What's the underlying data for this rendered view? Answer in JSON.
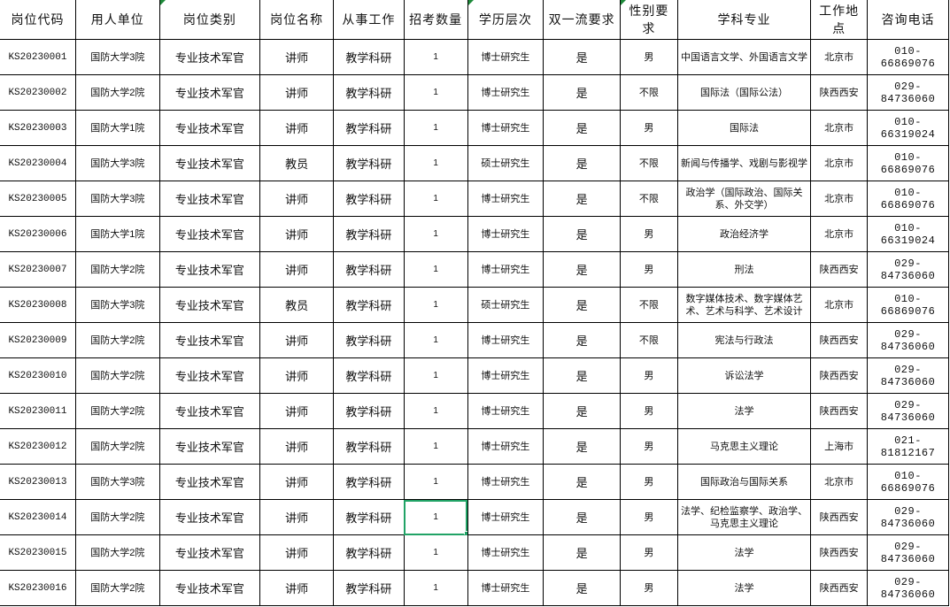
{
  "accent": "#21a366",
  "headers": [
    "岗位代码",
    "用人单位",
    "岗位类别",
    "岗位名称",
    "从事工作",
    "招考数量",
    "学历层次",
    "双一流要求",
    "性别要求",
    "学科专业",
    "工作地点",
    "咨询电话"
  ],
  "selected_cell": {
    "row": 14,
    "column": "招考数量"
  },
  "rows": [
    [
      "KS20230001",
      "国防大学3院",
      "专业技术军官",
      "讲师",
      "教学科研",
      "1",
      "博士研究生",
      "是",
      "男",
      "中国语言文学、外国语言文学",
      "北京市",
      "010-66869076"
    ],
    [
      "KS20230002",
      "国防大学2院",
      "专业技术军官",
      "讲师",
      "教学科研",
      "1",
      "博士研究生",
      "是",
      "不限",
      "国际法（国际公法）",
      "陕西西安",
      "029-84736060"
    ],
    [
      "KS20230003",
      "国防大学1院",
      "专业技术军官",
      "讲师",
      "教学科研",
      "1",
      "博士研究生",
      "是",
      "男",
      "国际法",
      "北京市",
      "010-66319024"
    ],
    [
      "KS20230004",
      "国防大学3院",
      "专业技术军官",
      "教员",
      "教学科研",
      "1",
      "硕士研究生",
      "是",
      "不限",
      "新闻与传播学、戏剧与影视学",
      "北京市",
      "010-66869076"
    ],
    [
      "KS20230005",
      "国防大学3院",
      "专业技术军官",
      "讲师",
      "教学科研",
      "1",
      "博士研究生",
      "是",
      "不限",
      "政治学（国际政治、国际关系、外交学）",
      "北京市",
      "010-66869076"
    ],
    [
      "KS20230006",
      "国防大学1院",
      "专业技术军官",
      "讲师",
      "教学科研",
      "1",
      "博士研究生",
      "是",
      "男",
      "政治经济学",
      "北京市",
      "010-66319024"
    ],
    [
      "KS20230007",
      "国防大学2院",
      "专业技术军官",
      "讲师",
      "教学科研",
      "1",
      "博士研究生",
      "是",
      "男",
      "刑法",
      "陕西西安",
      "029-84736060"
    ],
    [
      "KS20230008",
      "国防大学3院",
      "专业技术军官",
      "教员",
      "教学科研",
      "1",
      "硕士研究生",
      "是",
      "不限",
      "数字媒体技术、数字媒体艺术、艺术与科学、艺术设计",
      "北京市",
      "010-66869076"
    ],
    [
      "KS20230009",
      "国防大学2院",
      "专业技术军官",
      "讲师",
      "教学科研",
      "1",
      "博士研究生",
      "是",
      "不限",
      "宪法与行政法",
      "陕西西安",
      "029-84736060"
    ],
    [
      "KS20230010",
      "国防大学2院",
      "专业技术军官",
      "讲师",
      "教学科研",
      "1",
      "博士研究生",
      "是",
      "男",
      "诉讼法学",
      "陕西西安",
      "029-84736060"
    ],
    [
      "KS20230011",
      "国防大学2院",
      "专业技术军官",
      "讲师",
      "教学科研",
      "1",
      "博士研究生",
      "是",
      "男",
      "法学",
      "陕西西安",
      "029-84736060"
    ],
    [
      "KS20230012",
      "国防大学2院",
      "专业技术军官",
      "讲师",
      "教学科研",
      "1",
      "博士研究生",
      "是",
      "男",
      "马克思主义理论",
      "上海市",
      "021-81812167"
    ],
    [
      "KS20230013",
      "国防大学3院",
      "专业技术军官",
      "讲师",
      "教学科研",
      "1",
      "博士研究生",
      "是",
      "男",
      "国际政治与国际关系",
      "北京市",
      "010-66869076"
    ],
    [
      "KS20230014",
      "国防大学2院",
      "专业技术军官",
      "讲师",
      "教学科研",
      "1",
      "博士研究生",
      "是",
      "男",
      "法学、纪检监察学、政治学、马克思主义理论",
      "陕西西安",
      "029-84736060"
    ],
    [
      "KS20230015",
      "国防大学2院",
      "专业技术军官",
      "讲师",
      "教学科研",
      "1",
      "博士研究生",
      "是",
      "男",
      "法学",
      "陕西西安",
      "029-84736060"
    ],
    [
      "KS20230016",
      "国防大学2院",
      "专业技术军官",
      "讲师",
      "教学科研",
      "1",
      "博士研究生",
      "是",
      "男",
      "法学",
      "陕西西安",
      "029-84736060"
    ]
  ]
}
